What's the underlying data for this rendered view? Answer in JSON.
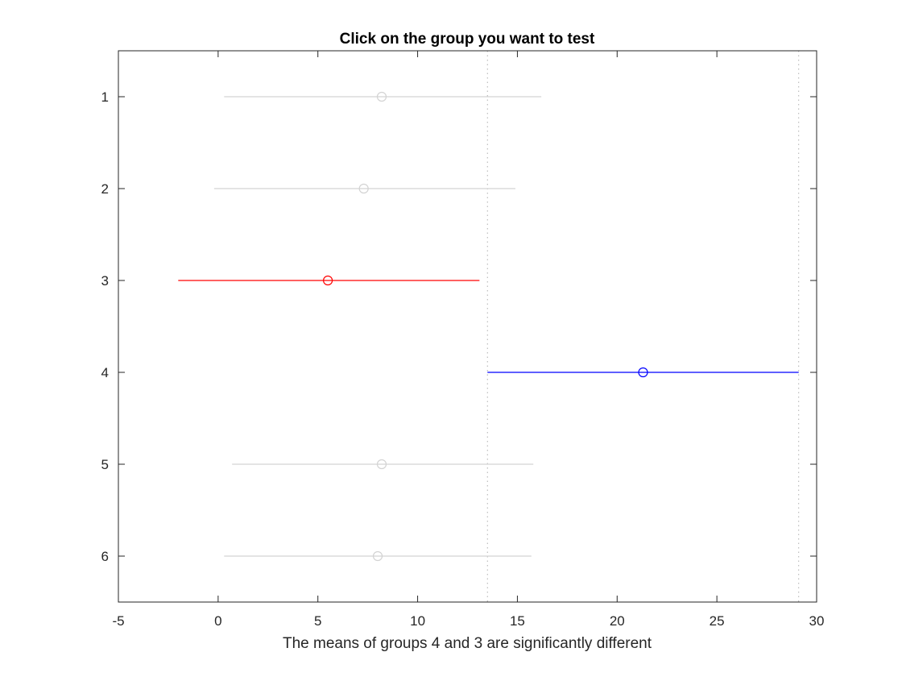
{
  "chart_data": {
    "type": "scatter",
    "title": "Click on the group you want to test",
    "xlabel": "The means of groups 4 and 3 are significantly different",
    "ylabel": "",
    "xlim": [
      -5,
      30
    ],
    "ylim": [
      0.5,
      6.5
    ],
    "y_reversed": true,
    "grid": false,
    "x_ticks": [
      -5,
      0,
      5,
      10,
      15,
      20,
      25,
      30
    ],
    "y_ticks": [
      1,
      2,
      3,
      4,
      5,
      6
    ],
    "groups": [
      {
        "label": "1",
        "mean": 8.2,
        "lower": 0.3,
        "upper": 16.2,
        "color": "#d3d3d3"
      },
      {
        "label": "2",
        "mean": 7.3,
        "lower": -0.2,
        "upper": 14.9,
        "color": "#d3d3d3"
      },
      {
        "label": "3",
        "mean": 5.5,
        "lower": -2.0,
        "upper": 13.1,
        "color": "#ff0000"
      },
      {
        "label": "4",
        "mean": 21.3,
        "lower": 13.5,
        "upper": 29.1,
        "color": "#0000ff"
      },
      {
        "label": "5",
        "mean": 8.2,
        "lower": 0.7,
        "upper": 15.8,
        "color": "#d3d3d3"
      },
      {
        "label": "6",
        "mean": 8.0,
        "lower": 0.3,
        "upper": 15.7,
        "color": "#d3d3d3"
      }
    ],
    "reference_lines_x": [
      13.5,
      29.1
    ],
    "reference_line_color": "#b0b0b0"
  }
}
